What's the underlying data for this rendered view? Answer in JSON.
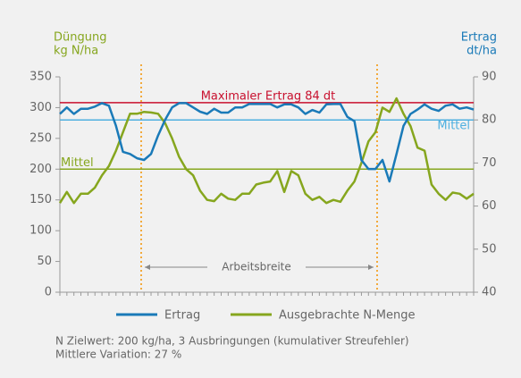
{
  "chart_data": {
    "type": "line",
    "y_axis_label": [
      "Düngung",
      "kg N/ha"
    ],
    "y2_axis_label": [
      "Ertrag",
      "dt/ha"
    ],
    "ylim": [
      0,
      350
    ],
    "yticks": [
      0,
      50,
      100,
      150,
      200,
      250,
      300,
      350
    ],
    "y2lim": [
      40,
      90
    ],
    "y2ticks": [
      40,
      50,
      60,
      70,
      80,
      90
    ],
    "series": [
      {
        "name": "Ertrag",
        "color": "#1a7ab8",
        "axis": "y2",
        "values": [
          81.4,
          82.9,
          81.4,
          82.6,
          82.6,
          83.1,
          83.9,
          83.3,
          78.6,
          72.6,
          72.1,
          71.1,
          70.7,
          72.1,
          76.4,
          80,
          82.9,
          83.9,
          83.9,
          82.9,
          81.9,
          81.4,
          82.6,
          81.7,
          81.7,
          82.9,
          82.9,
          83.7,
          83.7,
          83.7,
          83.7,
          82.9,
          83.6,
          83.6,
          82.9,
          81.4,
          82.3,
          81.7,
          83.6,
          83.7,
          83.7,
          80.7,
          79.7,
          70.7,
          68.6,
          68.6,
          70.7,
          65.7,
          72.1,
          78.6,
          81.4,
          82.4,
          83.6,
          82.6,
          82.1,
          83.3,
          83.6,
          82.6,
          82.9,
          82.4
        ]
      },
      {
        "name": "Ausgebrachte N-Menge",
        "color": "#86a61e",
        "axis": "y",
        "values": [
          145,
          163,
          145,
          160,
          160,
          170,
          190,
          205,
          230,
          260,
          290,
          290,
          293,
          292,
          290,
          275,
          250,
          220,
          200,
          190,
          165,
          150,
          148,
          160,
          152,
          150,
          160,
          160,
          175,
          178,
          180,
          197,
          163,
          197,
          190,
          160,
          150,
          155,
          145,
          150,
          147,
          165,
          180,
          210,
          245,
          260,
          300,
          293,
          315,
          290,
          270,
          235,
          230,
          175,
          160,
          150,
          162,
          160,
          152,
          160
        ]
      }
    ],
    "reference_lines": [
      {
        "label": "Maximaler Ertrag 84 dt",
        "value": 84,
        "axis": "y2",
        "color": "#c8102e"
      },
      {
        "label": "Mittel",
        "value": 80,
        "axis": "y2",
        "color": "#4fb0e0"
      },
      {
        "label": "Mittel",
        "value": 200,
        "axis": "y",
        "color": "#86a61e"
      }
    ],
    "annotation": "Arbeitsbreite",
    "notes": [
      "N Zielwert: 200 kg/ha, 3 Ausbringungen (kumulativer Streufehler)",
      "Mittlere Variation: 27 %"
    ]
  }
}
